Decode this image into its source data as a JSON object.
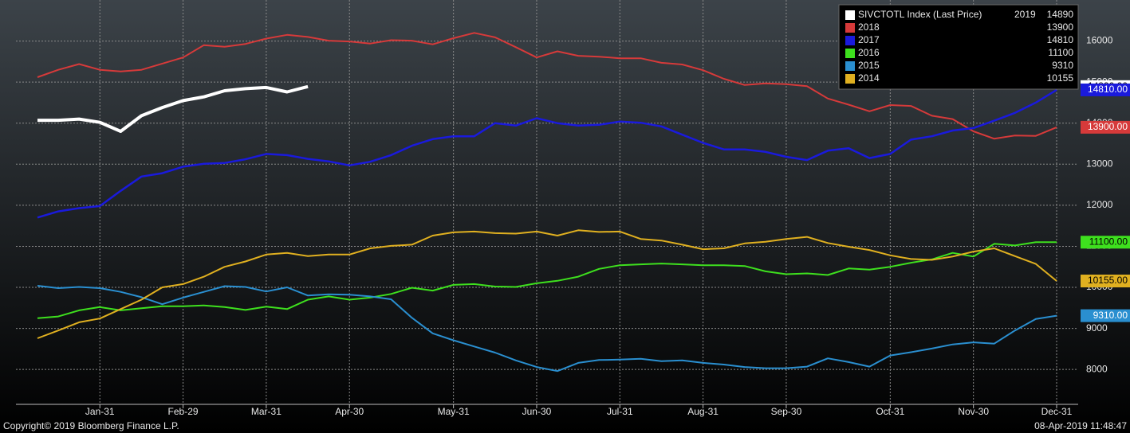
{
  "chart_data": {
    "type": "line",
    "legend_title": "SIVCTOTL Index (Last Price)",
    "categories": [
      null,
      null,
      null,
      "Jan-31",
      null,
      null,
      null,
      "Feb-29",
      null,
      null,
      null,
      "Mar-31",
      null,
      null,
      null,
      "Apr-30",
      null,
      null,
      null,
      null,
      "May-31",
      null,
      null,
      null,
      "Jun-30",
      null,
      null,
      null,
      "Jul-31",
      null,
      null,
      null,
      "Aug-31",
      null,
      null,
      null,
      "Sep-30",
      null,
      null,
      null,
      null,
      "Oct-31",
      null,
      null,
      null,
      "Nov-30",
      null,
      null,
      null,
      "Dec-31"
    ],
    "ylim": [
      7150,
      17000
    ],
    "yticks": [
      8000,
      9000,
      10000,
      11000,
      12000,
      13000,
      14000,
      15000,
      16000
    ],
    "grid": true,
    "legend": "top-right",
    "series": [
      {
        "name": "2019",
        "color": "#ffffff",
        "width": 4,
        "last_label": "14890.00",
        "values": [
          14070,
          14070,
          14100,
          14020,
          13800,
          14180,
          14380,
          14550,
          14640,
          14790,
          14840,
          14870,
          14760,
          14890,
          null,
          null,
          null,
          null,
          null,
          null,
          null,
          null,
          null,
          null,
          null,
          null,
          null,
          null,
          null,
          null,
          null,
          null,
          null,
          null,
          null,
          null,
          null,
          null,
          null,
          null,
          null,
          null,
          null,
          null,
          null,
          null,
          null,
          null,
          null,
          null
        ]
      },
      {
        "name": "2018",
        "color": "#d63a3a",
        "width": 2,
        "last_label": "13900.00",
        "values": [
          15120,
          15300,
          15440,
          15300,
          15260,
          15300,
          15450,
          15600,
          15900,
          15860,
          15930,
          16060,
          16150,
          16100,
          16010,
          15990,
          15940,
          16020,
          16010,
          15920,
          16070,
          16200,
          16090,
          15850,
          15600,
          15750,
          15640,
          15620,
          15580,
          15580,
          15470,
          15430,
          15290,
          15080,
          14930,
          14970,
          14950,
          14900,
          14600,
          14450,
          14290,
          14440,
          14420,
          14180,
          14100,
          13800,
          13620,
          13700,
          13690,
          13900
        ]
      },
      {
        "name": "2017",
        "color": "#1a1adc",
        "width": 2.5,
        "last_label": "14810.00",
        "values": [
          11700,
          11850,
          11930,
          11980,
          12350,
          12700,
          12780,
          12940,
          13010,
          13030,
          13120,
          13250,
          13220,
          13130,
          13070,
          12970,
          13060,
          13220,
          13450,
          13610,
          13680,
          13680,
          14000,
          13940,
          14120,
          14000,
          13940,
          13960,
          14040,
          14010,
          13920,
          13720,
          13520,
          13360,
          13360,
          13300,
          13180,
          13100,
          13330,
          13390,
          13150,
          13250,
          13600,
          13680,
          13820,
          13880,
          14060,
          14250,
          14500,
          14810
        ]
      },
      {
        "name": "2016",
        "color": "#3ee01e",
        "width": 2,
        "last_label": "11100.00",
        "values": [
          9250,
          9290,
          9440,
          9520,
          9440,
          9490,
          9540,
          9540,
          9560,
          9520,
          9450,
          9530,
          9470,
          9700,
          9780,
          9700,
          9750,
          9840,
          9990,
          9920,
          10060,
          10080,
          10020,
          10010,
          10100,
          10160,
          10260,
          10450,
          10540,
          10560,
          10580,
          10560,
          10540,
          10540,
          10520,
          10390,
          10320,
          10340,
          10300,
          10460,
          10430,
          10500,
          10600,
          10680,
          10840,
          10750,
          11060,
          11020,
          11100,
          11100
        ]
      },
      {
        "name": "2015",
        "color": "#2a8fd0",
        "width": 2,
        "last_label": "9310.00",
        "values": [
          10040,
          9980,
          10010,
          9980,
          9890,
          9760,
          9590,
          9750,
          9890,
          10030,
          10010,
          9900,
          10000,
          9800,
          9830,
          9820,
          9780,
          9710,
          9260,
          8880,
          8710,
          8560,
          8410,
          8220,
          8060,
          7960,
          8160,
          8230,
          8240,
          8260,
          8200,
          8220,
          8160,
          8120,
          8060,
          8030,
          8030,
          8070,
          8270,
          8180,
          8070,
          8340,
          8420,
          8510,
          8610,
          8660,
          8630,
          8950,
          9230,
          9310
        ]
      },
      {
        "name": "2014",
        "color": "#e0b020",
        "width": 2,
        "last_label": "10155.00",
        "values": [
          8760,
          8950,
          9150,
          9240,
          9470,
          9700,
          10000,
          10080,
          10260,
          10500,
          10630,
          10800,
          10840,
          10760,
          10800,
          10800,
          10950,
          11010,
          11040,
          11260,
          11340,
          11360,
          11320,
          11310,
          11360,
          11260,
          11390,
          11350,
          11360,
          11180,
          11140,
          11040,
          10930,
          10950,
          11070,
          11110,
          11180,
          11230,
          11080,
          10990,
          10910,
          10780,
          10690,
          10670,
          10750,
          10870,
          10950,
          10760,
          10570,
          10155
        ]
      }
    ],
    "footer_left": "Copyright© 2019 Bloomberg Finance L.P.",
    "footer_right": "08-Apr-2019 11:48:47"
  }
}
